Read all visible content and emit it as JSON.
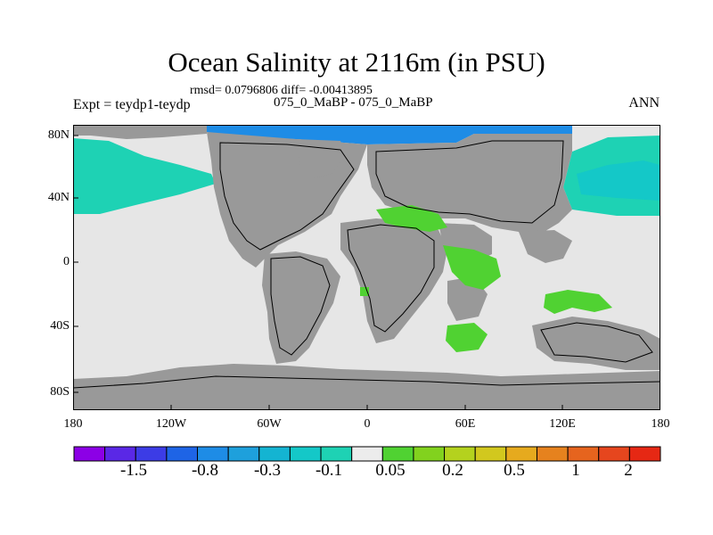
{
  "title": "Ocean Salinity at 2116m (in PSU)",
  "stats": "rmsd= 0.0796806 diff= -0.00413895",
  "expt": "Expt = teydp1-teydp",
  "compare": "075_0_MaBP - 075_0_MaBP",
  "season": "ANN",
  "lat_labels": [
    "80N",
    "40N",
    "0",
    "40S",
    "80S"
  ],
  "lon_labels": [
    "180",
    "120W",
    "60W",
    "0",
    "60E",
    "120E",
    "180"
  ],
  "colorbar": {
    "labels": [
      "-1.5",
      "-0.8",
      "-0.3",
      "-0.1",
      "0.05",
      "0.2",
      "0.5",
      "1",
      "2"
    ],
    "colors": [
      "#8c00e6",
      "#5a28e6",
      "#3c3ce6",
      "#1e64e6",
      "#1e8ce6",
      "#1ea0dc",
      "#14b4d2",
      "#14c8c8",
      "#1ed2b4",
      "#ececec",
      "#50d232",
      "#82d21e",
      "#b4d21e",
      "#d2c81e",
      "#e6aa1e",
      "#e6821e",
      "#e6641e",
      "#e6461e",
      "#e62814"
    ]
  },
  "legend_colors": {
    "land": "#999999",
    "ocean_neutral": "#e6e6e6",
    "teal": "#1ed2b4",
    "cyan": "#14c8c8",
    "blue": "#1e8ce6",
    "green": "#50d232"
  }
}
